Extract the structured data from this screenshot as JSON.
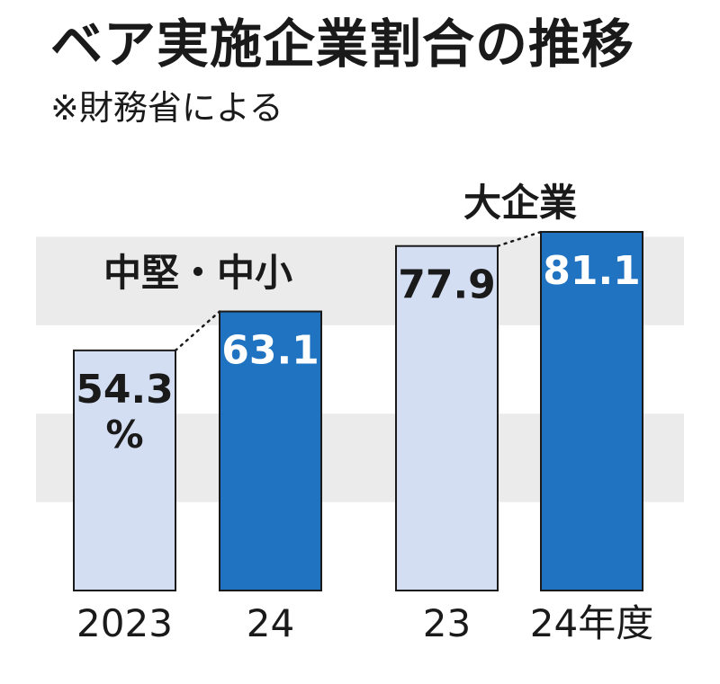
{
  "title": "ベア実施企業割合の推移",
  "subtitle": "※財務省による",
  "colors": {
    "light_bar": "#d3def2",
    "dark_bar": "#1f73c1",
    "band": "#ebebeb",
    "outline": "#1a1a1a"
  },
  "chart_data": {
    "type": "bar",
    "unit": "%",
    "ylim": [
      0,
      100
    ],
    "groups": [
      {
        "label": "中堅・中小",
        "bars": [
          {
            "category": "2023",
            "value": 54.3,
            "label": "54.3"
          },
          {
            "category": "24",
            "value": 63.1,
            "label": "63.1"
          }
        ]
      },
      {
        "label": "大企業",
        "bars": [
          {
            "category": "23",
            "value": 77.9,
            "label": "77.9"
          },
          {
            "category": "24年度",
            "value": 81.1,
            "label": "81.1"
          }
        ]
      }
    ]
  }
}
